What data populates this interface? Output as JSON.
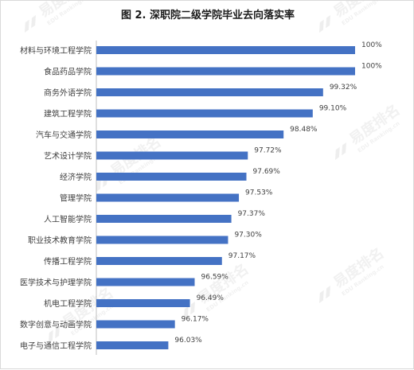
{
  "chart_data": {
    "type": "bar",
    "orientation": "horizontal",
    "title": "图 2. 深职院二级学院毕业去向落实率",
    "categories": [
      "材料与环境工程学院",
      "食品药品学院",
      "商务外语学院",
      "建筑工程学院",
      "汽车与交通学院",
      "艺术设计学院",
      "经济学院",
      "管理学院",
      "人工智能学院",
      "职业技术教育学院",
      "传播工程学院",
      "医学技术与护理学院",
      "机电工程学院",
      "数字创意与动画学院",
      "电子与通信工程学院"
    ],
    "values": [
      100,
      100,
      99.32,
      99.1,
      98.48,
      97.72,
      97.69,
      97.53,
      97.37,
      97.3,
      97.17,
      96.59,
      96.49,
      96.17,
      96.03
    ],
    "data_labels": [
      "100%",
      "100%",
      "99.32%",
      "99.10%",
      "98.48%",
      "97.72%",
      "97.69%",
      "97.53%",
      "97.37%",
      "97.30%",
      "97.17%",
      "96.59%",
      "96.49%",
      "96.17%",
      "96.03%"
    ],
    "xlim": [
      94.5,
      100
    ],
    "bar_color": "#4472C4",
    "grid": false,
    "legend": "none"
  },
  "watermark": {
    "brand": "易度排名",
    "sub": "EDU Ranking.cn",
    "color": "#eeeeee"
  }
}
